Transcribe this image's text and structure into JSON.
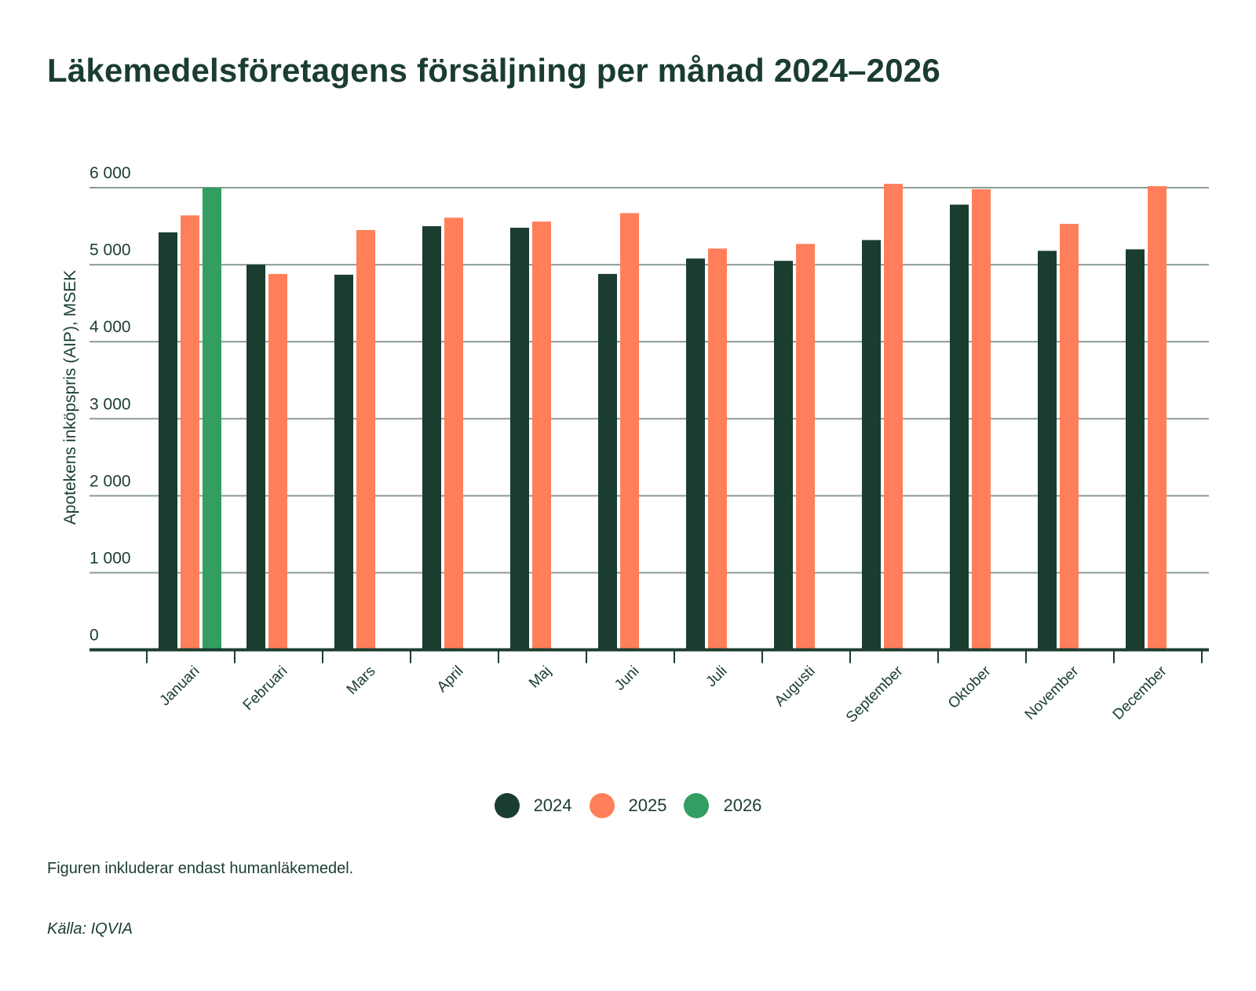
{
  "title": "Läkemedelsföretagens försäljning per månad 2024–2026",
  "chart_data": {
    "type": "bar",
    "title": "Läkemedelsföretagens försäljning per månad 2024–2026",
    "xlabel": "",
    "ylabel": "Apotekens inköpspris (AIP), MSEK",
    "ylim": [
      0,
      6000
    ],
    "yticks": [
      0,
      1000,
      2000,
      3000,
      4000,
      5000,
      6000
    ],
    "ytick_labels": [
      "0",
      "1 000",
      "2 000",
      "3 000",
      "4 000",
      "5 000",
      "6 000"
    ],
    "grid": true,
    "legend_position": "bottom-center",
    "categories": [
      "Januari",
      "Februari",
      "Mars",
      "April",
      "Maj",
      "Juni",
      "Juli",
      "Augusti",
      "September",
      "Oktober",
      "November",
      "December"
    ],
    "series": [
      {
        "name": "2024",
        "color": "#1a3d30",
        "values": [
          5420,
          5000,
          4870,
          5500,
          5480,
          4880,
          5080,
          5050,
          5320,
          5780,
          5180,
          5200
        ]
      },
      {
        "name": "2025",
        "color": "#ff7f5a",
        "values": [
          5640,
          4880,
          5450,
          5610,
          5560,
          5670,
          5210,
          5270,
          6050,
          5980,
          5530,
          6020
        ]
      },
      {
        "name": "2026",
        "color": "#339e62",
        "values": [
          6000,
          null,
          null,
          null,
          null,
          null,
          null,
          null,
          null,
          null,
          null,
          null
        ]
      }
    ]
  },
  "legend": [
    {
      "label": "2024",
      "color": "#1a3d30"
    },
    {
      "label": "2025",
      "color": "#ff7f5a"
    },
    {
      "label": "2026",
      "color": "#339e62"
    }
  ],
  "note": "Figuren inkluderar endast humanläkemedel.",
  "source": "Källa: IQVIA",
  "colors": {
    "text": "#1a3d30",
    "grid": "#8a9c93",
    "axis": "#1a3d30"
  }
}
